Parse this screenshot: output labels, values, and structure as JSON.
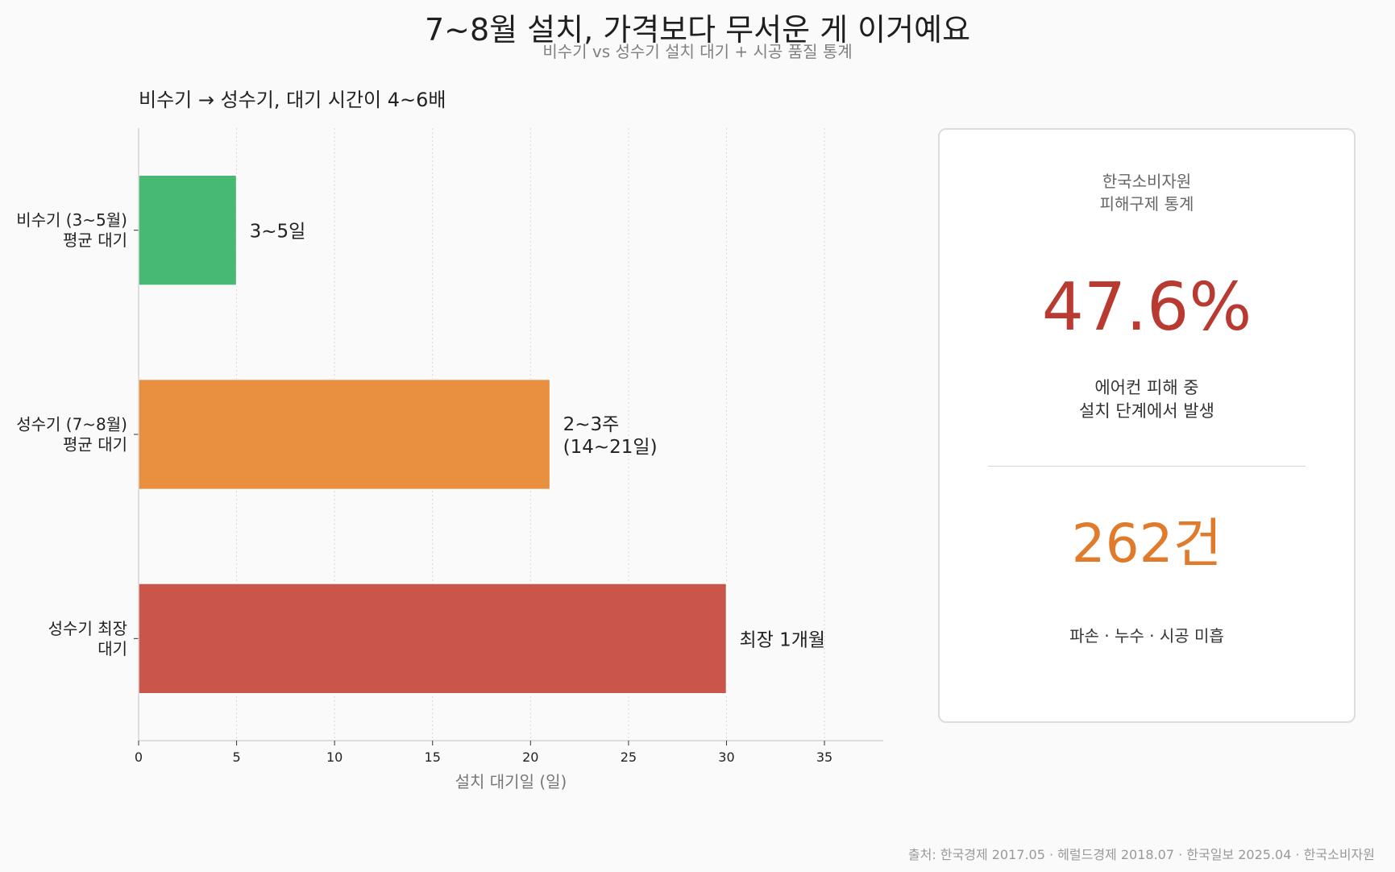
{
  "title": "7~8월 설치, 가격보다 무서운 게 이거예요",
  "subtitle": "비수기 vs 성수기 설치 대기 + 시공 품질 통계",
  "chart_data": {
    "type": "bar",
    "orientation": "horizontal",
    "title": "비수기 → 성수기, 대기 시간이 4~6배",
    "xlabel": "설치 대기일 (일)",
    "ylabel": "",
    "xlim": [
      0,
      38
    ],
    "xticks": [
      0,
      5,
      10,
      15,
      20,
      25,
      30,
      35
    ],
    "grid": "vertical-dotted",
    "categories": [
      [
        "비수기 (3~5월)",
        "평균 대기"
      ],
      [
        "성수기 (7~8월)",
        "평균 대기"
      ],
      [
        "성수기 최장",
        "대기"
      ]
    ],
    "values": [
      5,
      21,
      30
    ],
    "colors": [
      "#48b974",
      "#e89040",
      "#c9554b"
    ],
    "data_labels": [
      [
        "3~5일"
      ],
      [
        "2~3주",
        "(14~21일)"
      ],
      [
        "최장 1개월"
      ]
    ]
  },
  "card": {
    "source_lines": [
      "한국소비자원",
      "피해구제 통계"
    ],
    "stat1": "47.6%",
    "stat1_lines": [
      "에어컨 피해 중",
      "설치 단계에서 발생"
    ],
    "stat2": "262건",
    "stat2_label": "파손 · 누수 · 시공 미흡"
  },
  "footer": "출처: 한국경제 2017.05 · 헤럴드경제 2018.07 · 한국일보 2025.04 · 한국소비자원"
}
